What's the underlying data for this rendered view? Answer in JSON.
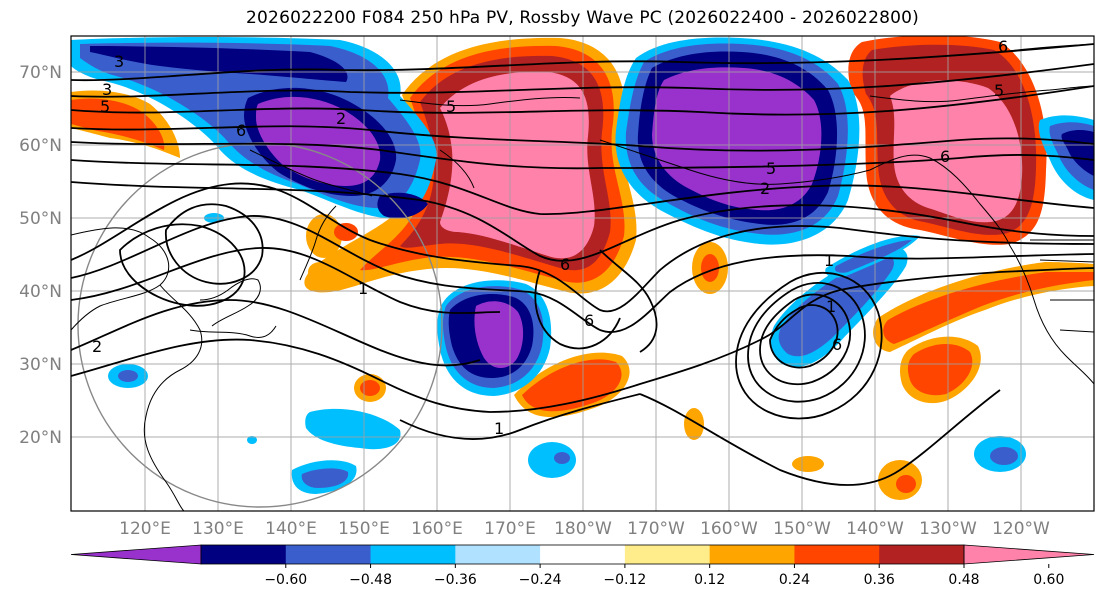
{
  "title": "2026022200 F084 250 hPa PV, Rossby Wave PC (2026022400 - 2026022800)",
  "map": {
    "lat_labels": [
      "70°N",
      "60°N",
      "50°N",
      "40°N",
      "30°N",
      "20°N"
    ],
    "lon_labels": [
      "120°E",
      "130°E",
      "140°E",
      "150°E",
      "160°E",
      "170°E",
      "180°W",
      "170°W",
      "160°W",
      "150°W",
      "140°W",
      "130°W",
      "120°W"
    ],
    "contour_labels": [
      "3",
      "3",
      "5",
      "5",
      "6",
      "2",
      "2",
      "1",
      "1",
      "6",
      "6",
      "2",
      "5",
      "1",
      "6",
      "1",
      "6",
      "6",
      "5"
    ],
    "colors": {
      "neg_strongest": "#9932CC",
      "neg_strong": "#000080",
      "neg_mid": "#3A5FCD",
      "neg_weak": "#00BFFF",
      "neg_weakest": "#B0E2FF",
      "pos_weakest": "#FFEC8B",
      "pos_weak": "#FFA500",
      "pos_mid": "#FF4500",
      "pos_strong": "#B22222",
      "pos_strongest": "#FF82AB"
    }
  },
  "colorbar": {
    "ticks": [
      "−0.60",
      "−0.48",
      "−0.36",
      "−0.24",
      "−0.12",
      "0.12",
      "0.24",
      "0.36",
      "0.48",
      "0.60"
    ],
    "colors": [
      "#9932CC",
      "#000080",
      "#3A5FCD",
      "#00BFFF",
      "#B0E2FF",
      "#FFFFFF",
      "#FFEC8B",
      "#FFA500",
      "#FF4500",
      "#B22222",
      "#FF82AB"
    ]
  }
}
